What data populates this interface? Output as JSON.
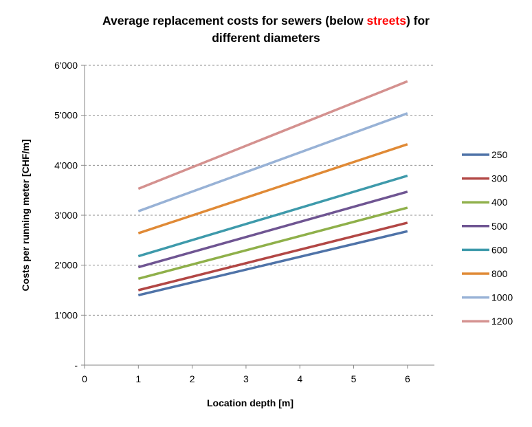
{
  "chart_data": {
    "type": "line",
    "title": {
      "line1_before": "Average replacement costs for sewers  (below ",
      "line1_highlight": "streets",
      "line1_after": ") for",
      "line2": "different diameters",
      "highlight_color": "#ff0000"
    },
    "xlabel": "Location depth [m]",
    "ylabel": "Costs per running meter [CHF/m]",
    "xlim": [
      0,
      6.5
    ],
    "ylim": [
      0,
      6000
    ],
    "x_ticks": [
      0,
      1,
      2,
      3,
      4,
      5,
      6
    ],
    "x_tick_labels": [
      "0",
      "1",
      "2",
      "3",
      "4",
      "5",
      "6"
    ],
    "y_ticks": [
      0,
      1000,
      2000,
      3000,
      4000,
      5000,
      6000
    ],
    "y_tick_labels": [
      "-",
      "1'000",
      "2'000",
      "3'000",
      "4'000",
      "5'000",
      "6'000"
    ],
    "grid": "horizontal-dashed",
    "legend": "right",
    "series": [
      {
        "name": "250",
        "color": "#4f73a8",
        "x": [
          1,
          6
        ],
        "y": [
          1400,
          2680
        ]
      },
      {
        "name": "300",
        "color": "#b24745",
        "x": [
          1,
          6
        ],
        "y": [
          1500,
          2850
        ]
      },
      {
        "name": "400",
        "color": "#8fb04a",
        "x": [
          1,
          6
        ],
        "y": [
          1730,
          3150
        ]
      },
      {
        "name": "500",
        "color": "#6f5592",
        "x": [
          1,
          6
        ],
        "y": [
          1960,
          3470
        ]
      },
      {
        "name": "600",
        "color": "#3e9aab",
        "x": [
          1,
          6
        ],
        "y": [
          2180,
          3790
        ]
      },
      {
        "name": "800",
        "color": "#e08a36",
        "x": [
          1,
          6
        ],
        "y": [
          2640,
          4420
        ]
      },
      {
        "name": "1000",
        "color": "#98b2d6",
        "x": [
          1,
          6
        ],
        "y": [
          3080,
          5040
        ]
      },
      {
        "name": "1200",
        "color": "#d4918f",
        "x": [
          1,
          6
        ],
        "y": [
          3530,
          5680
        ]
      }
    ]
  }
}
